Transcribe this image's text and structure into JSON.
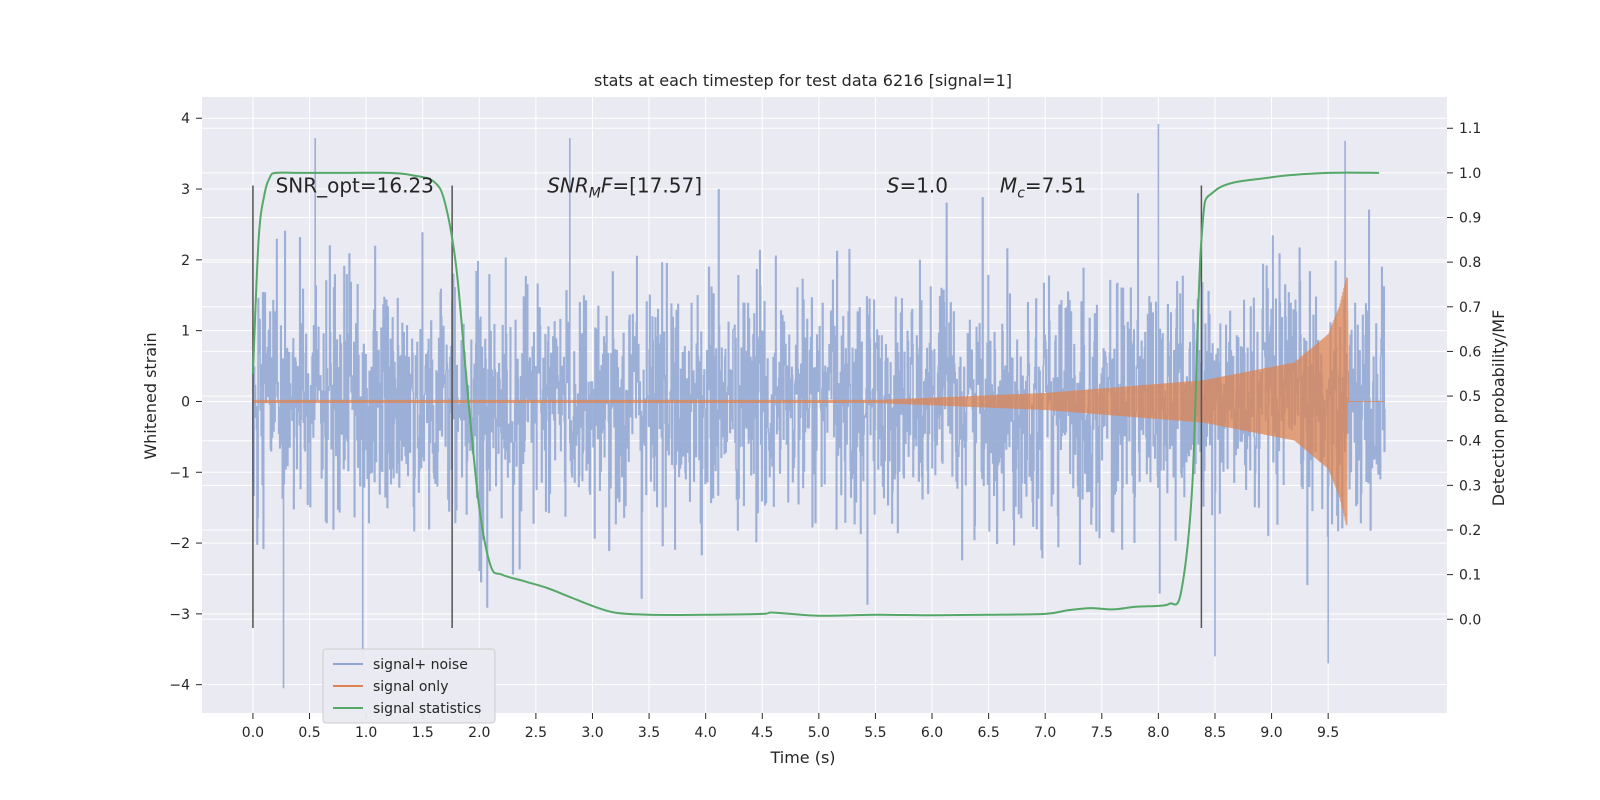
{
  "chart_data": {
    "type": "line",
    "title": "stats at each timestep for test data 6216 [signal=1]",
    "xlabel": "Time (s)",
    "ylabel": "Whitened strain",
    "y2label": "Detection probability/MF",
    "xlim": [
      -0.45,
      10.55
    ],
    "ylim": [
      -4.4,
      4.3
    ],
    "y2lim": [
      -0.21,
      1.17
    ],
    "xticks": [
      "0.0",
      "0.5",
      "1.0",
      "1.5",
      "2.0",
      "2.5",
      "3.0",
      "3.5",
      "4.0",
      "4.5",
      "5.0",
      "5.5",
      "6.0",
      "6.5",
      "7.0",
      "7.5",
      "8.0",
      "8.5",
      "9.0",
      "9.5"
    ],
    "yticks": [
      "−4",
      "−3",
      "−2",
      "−1",
      "0",
      "1",
      "2",
      "3",
      "4"
    ],
    "y2ticks": [
      "0.0",
      "0.1",
      "0.2",
      "0.3",
      "0.4",
      "0.5",
      "0.6",
      "0.7",
      "0.8",
      "0.9",
      "1.0",
      "1.1"
    ],
    "grid": true,
    "legend_position": "lower-left",
    "annotations": {
      "snr_opt": "SNR_opt=16.23",
      "snr_mf_prefix": "SNR",
      "snr_mf_sub": "MF",
      "snr_mf_suffix": "=[17.57]",
      "s_prefix": "S",
      "s_suffix": "=1.0",
      "mc_prefix": "M",
      "mc_sub": "c",
      "mc_suffix": "=7.51"
    },
    "vlines": [
      {
        "x": 0.0,
        "ymin": -3.2,
        "ymax": 3.05
      },
      {
        "x": 1.76,
        "ymin": -3.2,
        "ymax": 3.05
      },
      {
        "x": 8.38,
        "ymin": -3.2,
        "ymax": 3.05
      }
    ],
    "series": [
      {
        "name": "signal+ noise",
        "color": "#8ea5d1",
        "axis": "left",
        "x_range": [
          0.0,
          10.0
        ],
        "envelope_typical": 1.9,
        "extremes": [
          {
            "x": 0.27,
            "y": -4.05
          },
          {
            "x": 0.55,
            "y": 3.72
          },
          {
            "x": 0.97,
            "y": -3.6
          },
          {
            "x": 2.8,
            "y": 3.72
          },
          {
            "x": 8.0,
            "y": 3.92
          },
          {
            "x": 8.5,
            "y": -3.6
          },
          {
            "x": 9.5,
            "y": -3.7
          },
          {
            "x": 9.65,
            "y": 3.68
          }
        ]
      },
      {
        "name": "signal only",
        "color": "#dd8452",
        "axis": "left",
        "x_start": 0.0,
        "x_end": 9.67,
        "amplitude_points": [
          {
            "x": 0.0,
            "y": 0.02
          },
          {
            "x": 5.5,
            "y": 0.02
          },
          {
            "x": 7.0,
            "y": 0.12
          },
          {
            "x": 8.4,
            "y": 0.3
          },
          {
            "x": 9.2,
            "y": 0.55
          },
          {
            "x": 9.5,
            "y": 0.95
          },
          {
            "x": 9.6,
            "y": 1.35
          },
          {
            "x": 9.66,
            "y": 1.75
          }
        ]
      },
      {
        "name": "signal statistics",
        "color": "#55a868",
        "axis": "right",
        "x": [
          0.0,
          0.05,
          0.1,
          0.15,
          0.2,
          0.4,
          0.8,
          1.2,
          1.4,
          1.6,
          1.7,
          1.8,
          1.9,
          2.0,
          2.1,
          2.2,
          2.4,
          2.6,
          2.8,
          3.0,
          3.2,
          3.5,
          4.0,
          4.5,
          4.6,
          5.0,
          5.5,
          6.0,
          6.5,
          7.0,
          7.2,
          7.4,
          7.6,
          7.8,
          8.0,
          8.1,
          8.2,
          8.3,
          8.38,
          8.5,
          9.0,
          9.5,
          9.95
        ],
        "y": [
          0.55,
          0.85,
          0.95,
          0.99,
          1.0,
          1.0,
          1.0,
          1.0,
          0.995,
          0.98,
          0.93,
          0.78,
          0.5,
          0.25,
          0.12,
          0.1,
          0.085,
          0.07,
          0.05,
          0.03,
          0.015,
          0.01,
          0.01,
          0.012,
          0.015,
          0.008,
          0.01,
          0.009,
          0.01,
          0.012,
          0.02,
          0.025,
          0.022,
          0.028,
          0.03,
          0.035,
          0.06,
          0.3,
          0.85,
          0.96,
          0.99,
          1.0,
          1.0
        ]
      }
    ]
  }
}
